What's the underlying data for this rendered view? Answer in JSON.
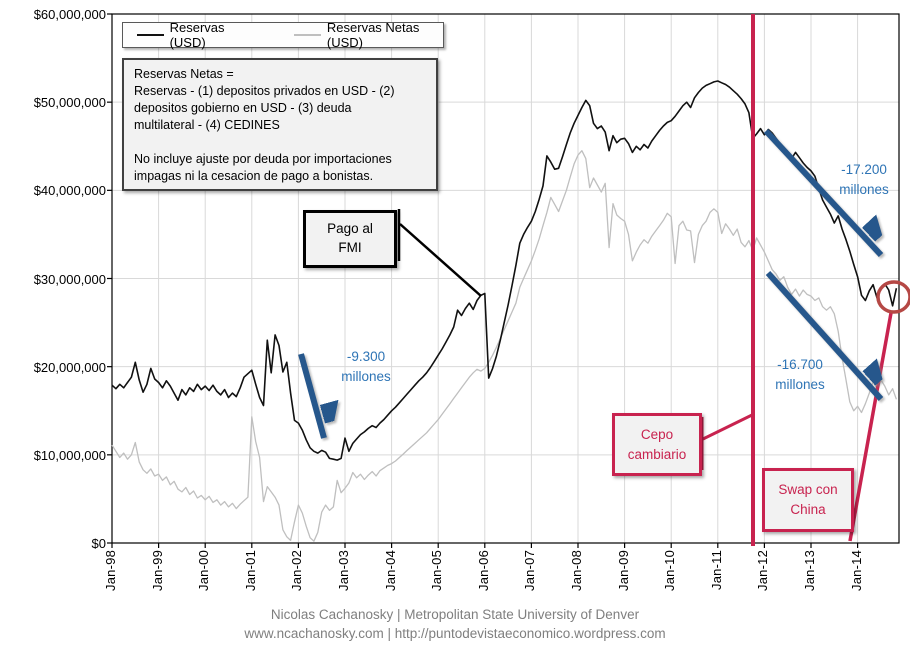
{
  "colors": {
    "reservas_line": "#111111",
    "netas_line": "#bfbfbf",
    "arrow_blue": "#26578c",
    "note_blue": "#2e74b5",
    "crimson": "#c8234f",
    "circle_red": "#b54845",
    "grid": "#d9d9d9",
    "axis": "#000000",
    "footer_gray": "#7f7f7f"
  },
  "legend": {
    "items": [
      {
        "label": "Reservas (USD)"
      },
      {
        "label": "Reservas Netas (USD)"
      }
    ]
  },
  "note_box": {
    "text": "Reservas Netas =\nReservas - (1) depositos privados en USD - (2)\ndepositos gobierno en USD - (3) deuda\nmultilateral - (4) CEDINES\n\nNo incluye ajuste por deuda por importaciones\nimpagas ni la cesacion de pago a bonistas."
  },
  "annotations": {
    "pago_fmi": "Pago al\nFMI",
    "drop_2002": "-9.300\nmillones",
    "drop_reservas": "-17.200\nmillones",
    "drop_netas": "-16.700\nmillones",
    "cepo": "Cepo\ncambiario",
    "swap": "Swap con\nChina"
  },
  "footer": {
    "line1": "Nicolas Cachanosky | Metropolitan  State University of Denver",
    "line2": "www.ncachanosky.com  | http://puntodevistaeconomico.wordpress.com"
  },
  "chart_data": {
    "type": "line",
    "x_start_year": 1998,
    "x_step_months": 1,
    "x_end": "Nov-2014",
    "ylim": [
      0,
      60
    ],
    "unit_scale_note": "series values in axis millions; axis shows $ with 6 zeros",
    "y_tick_values": [
      0,
      10,
      20,
      30,
      40,
      50,
      60
    ],
    "y_tick_labels": [
      "$0",
      "$10,000,000",
      "$20,000,000",
      "$30,000,000",
      "$40,000,000",
      "$50,000,000",
      "$60,000,000"
    ],
    "x_tick_labels": [
      "Jan-98",
      "Jan-99",
      "Jan-00",
      "Jan-01",
      "Jan-02",
      "Jan-03",
      "Jan-04",
      "Jan-05",
      "Jan-06",
      "Jan-07",
      "Jan-08",
      "Jan-09",
      "Jan-10",
      "Jan-11",
      "Jan-12",
      "Jan-13",
      "Jan-14"
    ],
    "grid": true,
    "legend_position": "top-left",
    "cepo_line_year": 2011.75,
    "events": [
      {
        "name": "Pago al FMI",
        "year": 2006.0
      },
      {
        "name": "Cepo cambiario",
        "year": 2011.75
      },
      {
        "name": "Swap con China",
        "year": 2014.5
      }
    ],
    "arrows_data_coords": [
      {
        "label": "-9.300 millones",
        "from": [
          2002.05,
          21.7
        ],
        "to": [
          2002.6,
          11.0
        ]
      },
      {
        "label": "-17.200 millones",
        "from": [
          2012.0,
          46.8
        ],
        "to": [
          2014.6,
          32.0
        ]
      },
      {
        "label": "-16.700 millones",
        "from": [
          2012.05,
          30.7
        ],
        "to": [
          2014.6,
          15.5
        ]
      }
    ],
    "series": [
      {
        "name": "Reservas (USD)",
        "color_key": "reservas_line",
        "values": [
          17.9,
          17.5,
          18.0,
          17.6,
          18.2,
          18.8,
          20.5,
          18.5,
          17.1,
          18.0,
          19.8,
          18.6,
          18.2,
          17.6,
          18.4,
          17.8,
          17.0,
          16.2,
          17.4,
          16.8,
          17.6,
          17.2,
          18.0,
          17.4,
          17.8,
          17.3,
          17.9,
          17.2,
          16.8,
          17.4,
          16.5,
          17.0,
          16.6,
          17.6,
          18.8,
          19.2,
          19.6,
          18.0,
          16.5,
          15.6,
          23.0,
          19.3,
          23.6,
          22.4,
          19.4,
          20.5,
          17.0,
          13.9,
          13.6,
          12.8,
          11.7,
          10.8,
          10.4,
          10.2,
          10.5,
          10.3,
          9.6,
          9.5,
          9.4,
          9.6,
          11.9,
          10.4,
          11.3,
          11.8,
          12.3,
          12.6,
          13.0,
          13.3,
          13.1,
          13.6,
          14.0,
          14.5,
          15.0,
          15.4,
          15.9,
          16.4,
          16.9,
          17.4,
          17.9,
          18.4,
          18.8,
          19.3,
          19.9,
          20.6,
          21.3,
          22.0,
          22.8,
          23.6,
          24.5,
          26.4,
          25.8,
          26.6,
          27.2,
          26.5,
          27.5,
          28.1,
          28.3,
          18.7,
          19.8,
          21.2,
          23.0,
          25.0,
          27.0,
          29.2,
          31.5,
          34.0,
          35.0,
          35.8,
          36.5,
          37.6,
          39.0,
          40.5,
          43.9,
          43.2,
          42.4,
          42.5,
          43.8,
          45.2,
          46.5,
          47.6,
          48.5,
          49.4,
          50.2,
          49.6,
          47.6,
          47.0,
          47.3,
          46.6,
          44.5,
          46.2,
          45.4,
          45.8,
          45.9,
          45.3,
          44.3,
          45.0,
          44.6,
          45.2,
          44.8,
          45.6,
          46.2,
          46.8,
          47.3,
          47.7,
          47.9,
          48.4,
          49.0,
          49.6,
          50.0,
          49.4,
          50.5,
          51.1,
          51.6,
          51.9,
          52.1,
          52.3,
          52.4,
          52.2,
          52.0,
          51.7,
          51.3,
          50.9,
          50.4,
          49.8,
          48.8,
          45.9,
          46.4,
          47.0,
          46.3,
          46.9,
          46.5,
          45.9,
          45.3,
          44.7,
          44.1,
          43.6,
          44.3,
          43.7,
          43.1,
          42.6,
          42.2,
          41.6,
          40.2,
          38.9,
          38.1,
          37.3,
          36.3,
          37.1,
          35.6,
          34.4,
          33.1,
          31.6,
          30.2,
          28.1,
          27.5,
          28.6,
          29.3,
          27.8,
          28.9,
          29.4,
          28.7,
          26.9,
          28.9
        ]
      },
      {
        "name": "Reservas Netas (USD)",
        "color_key": "netas_line",
        "values": [
          11.1,
          10.4,
          9.7,
          10.2,
          9.5,
          10.0,
          11.4,
          9.2,
          8.3,
          7.9,
          8.4,
          7.6,
          7.8,
          7.1,
          7.5,
          6.6,
          7.0,
          6.1,
          5.8,
          6.3,
          5.5,
          5.9,
          5.1,
          5.4,
          4.9,
          5.3,
          4.6,
          4.9,
          4.3,
          4.7,
          4.1,
          4.5,
          3.9,
          4.4,
          4.8,
          5.2,
          14.3,
          11.5,
          9.7,
          4.7,
          6.4,
          5.8,
          5.2,
          4.3,
          1.5,
          0.7,
          0.3,
          2.4,
          4.3,
          3.4,
          1.9,
          0.6,
          0.2,
          1.2,
          3.5,
          4.3,
          3.7,
          4.1,
          7.1,
          5.7,
          6.2,
          6.8,
          8.0,
          7.4,
          7.8,
          7.2,
          7.7,
          8.1,
          7.6,
          8.2,
          8.5,
          8.8,
          9.0,
          9.3,
          9.7,
          10.1,
          10.5,
          10.9,
          11.3,
          11.7,
          12.1,
          12.5,
          13.0,
          13.5,
          14.0,
          14.6,
          15.2,
          15.8,
          16.4,
          17.0,
          17.6,
          18.2,
          18.8,
          19.3,
          19.7,
          19.5,
          19.8,
          20.5,
          21.3,
          22.2,
          23.2,
          24.2,
          25.2,
          26.2,
          27.2,
          29.0,
          30.0,
          31.0,
          32.0,
          33.2,
          34.5,
          36.0,
          37.5,
          39.2,
          38.4,
          37.6,
          38.8,
          40.0,
          41.5,
          43.0,
          44.0,
          44.5,
          43.6,
          40.3,
          41.4,
          40.6,
          39.8,
          40.8,
          33.5,
          38.5,
          37.2,
          36.8,
          36.5,
          35.0,
          32.0,
          33.0,
          33.8,
          34.4,
          34.0,
          34.8,
          35.4,
          36.0,
          36.6,
          37.4,
          37.0,
          31.7,
          36.0,
          36.5,
          35.5,
          35.4,
          31.8,
          35.0,
          36.0,
          36.5,
          37.5,
          37.9,
          37.5,
          35.1,
          36.2,
          35.6,
          34.9,
          35.6,
          34.1,
          33.6,
          34.3,
          33.2,
          34.6,
          33.8,
          33.0,
          32.0,
          31.0,
          30.5,
          29.8,
          30.2,
          29.0,
          28.2,
          28.8,
          28.0,
          28.7,
          28.2,
          28.0,
          27.5,
          27.8,
          26.8,
          26.4,
          26.8,
          26.0,
          24.0,
          21.0,
          18.5,
          16.0,
          15.0,
          15.5,
          14.8,
          15.8,
          17.0,
          18.3,
          17.5,
          18.5,
          17.8,
          16.8,
          17.5,
          16.3
        ]
      }
    ]
  }
}
